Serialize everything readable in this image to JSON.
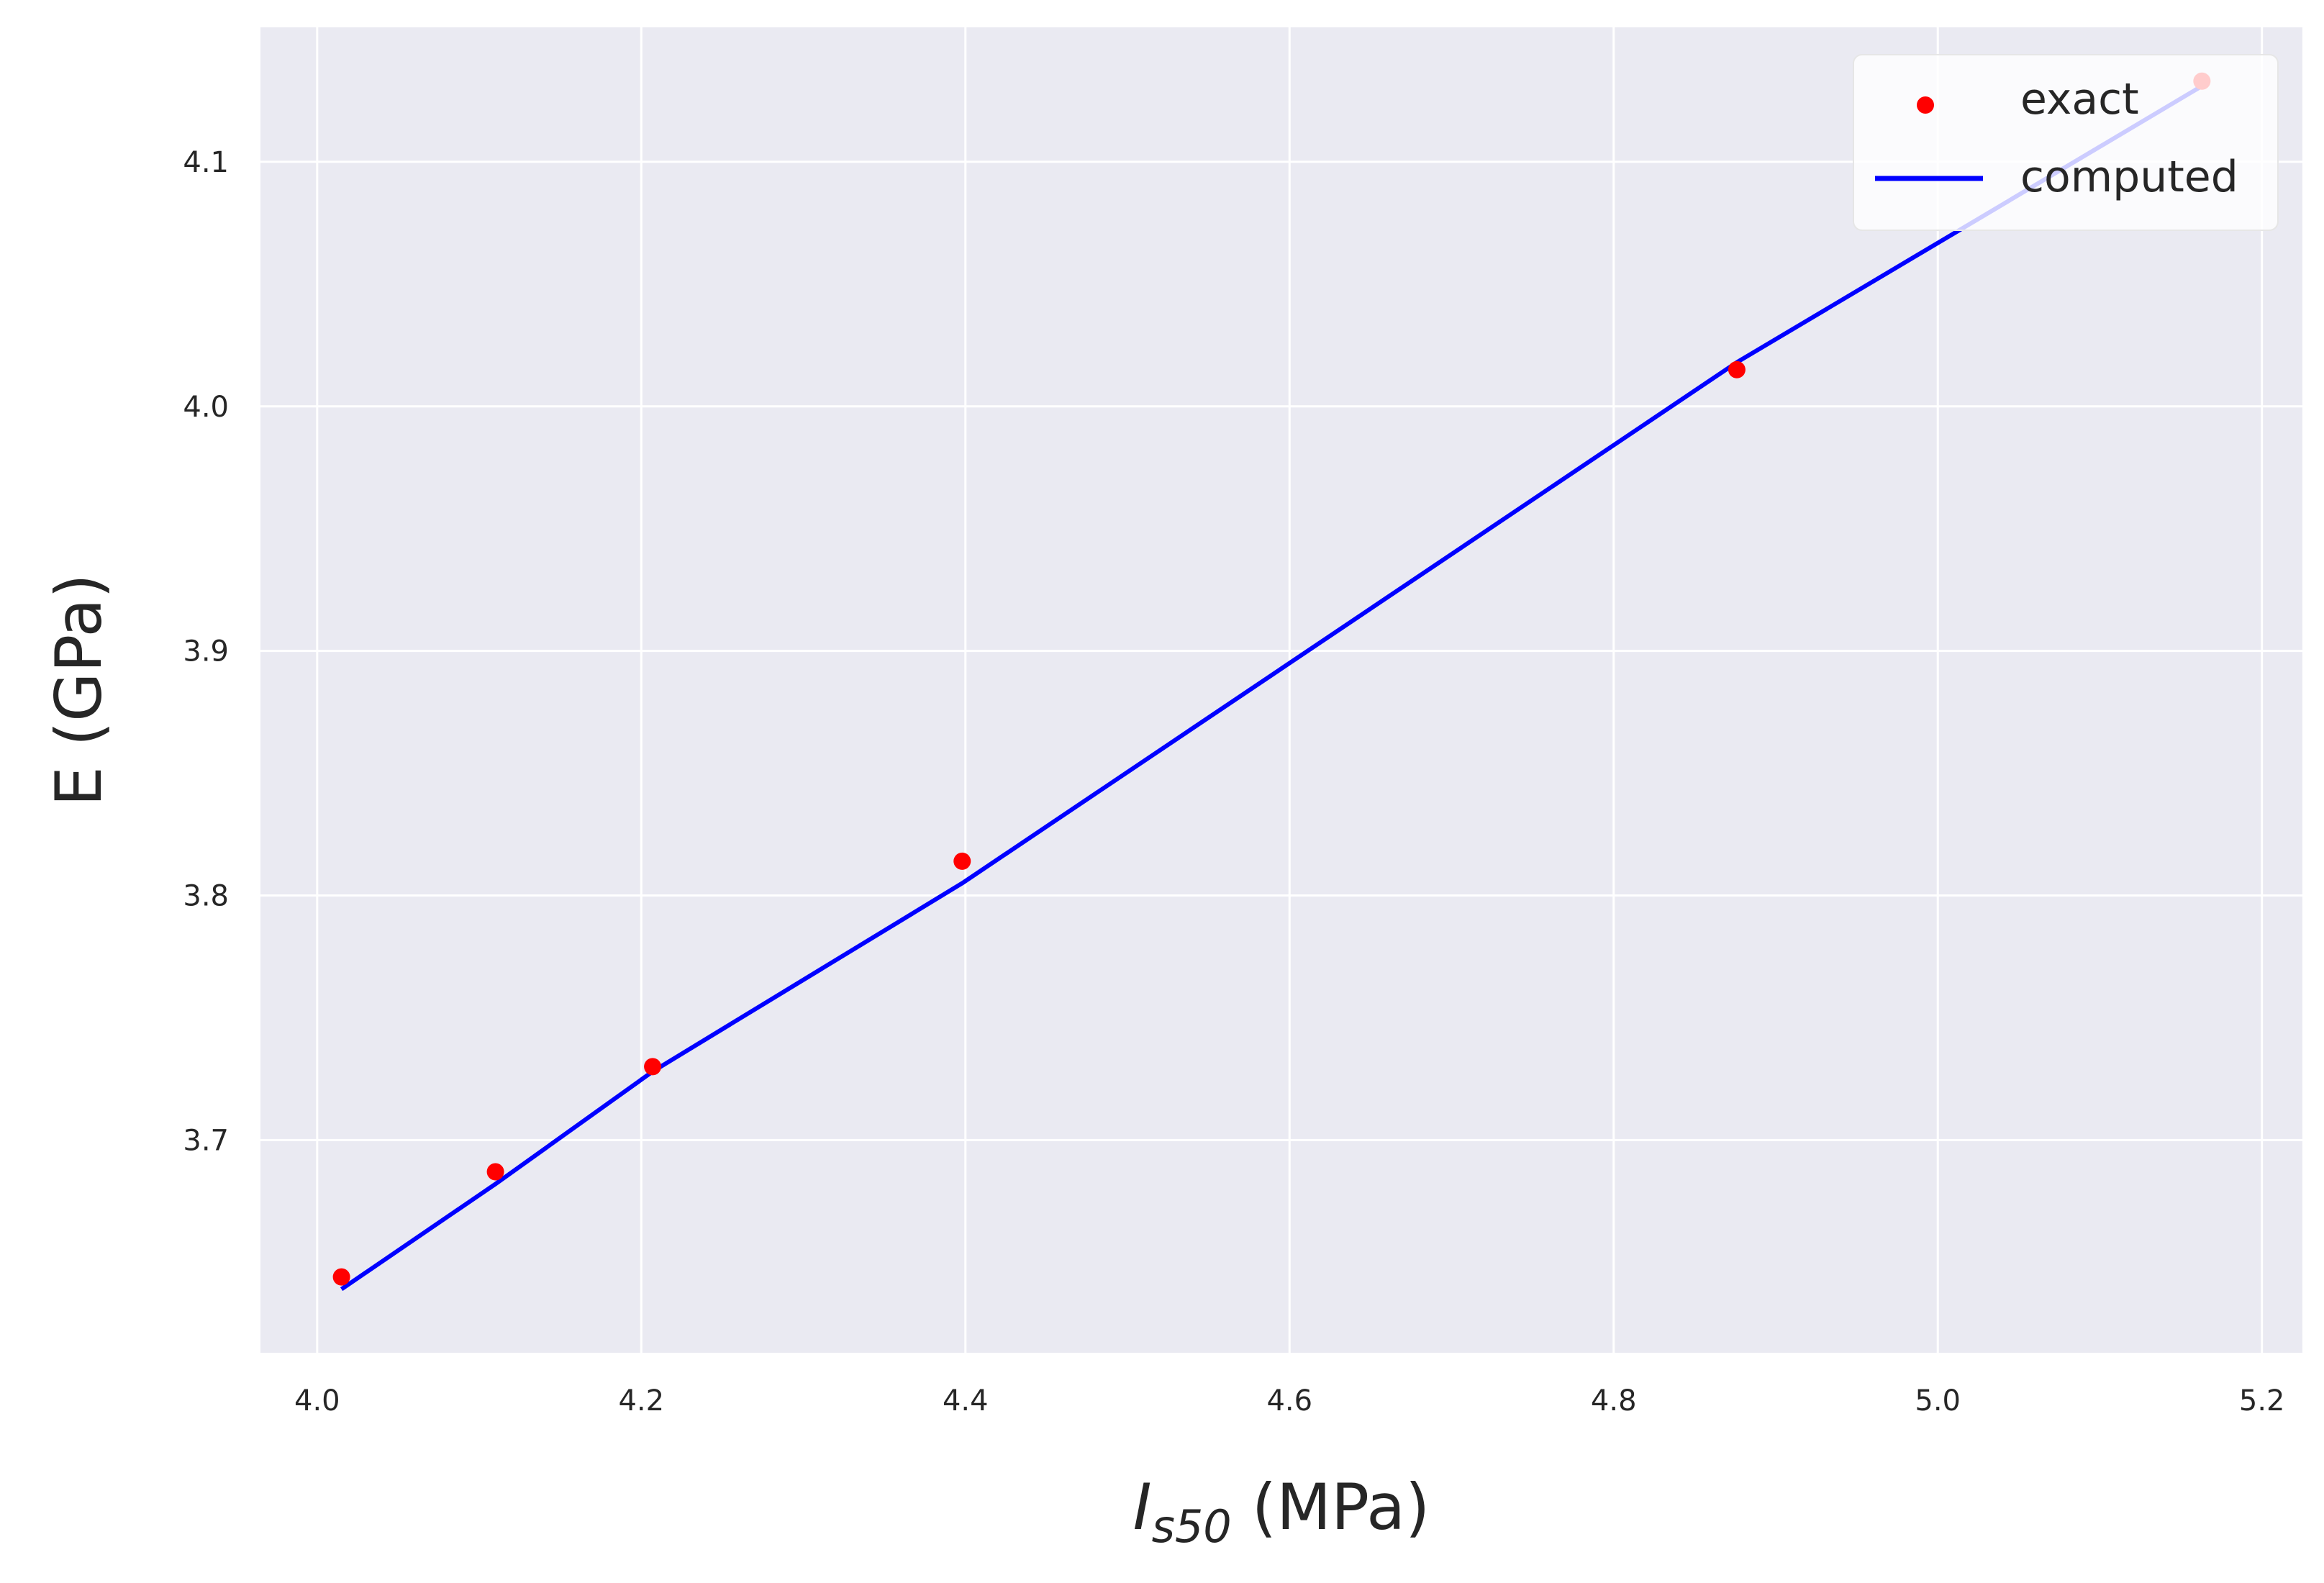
{
  "chart_data": {
    "type": "line",
    "xlabel": {
      "main": "I",
      "sub": "s50",
      "rest": " (MPa)"
    },
    "ylabel": "E (GPa)",
    "xlim": [
      3.965,
      5.225
    ],
    "ylim": [
      3.613,
      4.155
    ],
    "xticks": [
      4.0,
      4.2,
      4.4,
      4.6,
      4.8,
      5.0,
      5.2
    ],
    "xtick_labels": [
      "4.0",
      "4.2",
      "4.4",
      "4.6",
      "4.8",
      "5.0",
      "5.2"
    ],
    "yticks": [
      3.7,
      3.8,
      3.9,
      4.0,
      4.1
    ],
    "ytick_labels": [
      "3.7",
      "3.8",
      "3.9",
      "4.0",
      "4.1"
    ],
    "grid": true,
    "legend_position": "top-right",
    "series": [
      {
        "name": "exact",
        "kind": "scatter",
        "color": "#ff0000",
        "x": [
          4.015,
          4.11,
          4.207,
          4.398,
          4.876,
          5.163
        ],
        "y": [
          3.644,
          3.687,
          3.73,
          3.814,
          4.015,
          4.133
        ]
      },
      {
        "name": "computed",
        "kind": "line",
        "color": "#0000ff",
        "x": [
          4.015,
          4.11,
          4.207,
          4.398,
          4.876,
          5.163
        ],
        "y": [
          3.639,
          3.682,
          3.728,
          3.805,
          4.018,
          4.131
        ]
      }
    ],
    "background_color": "#eaeaf2",
    "grid_color": "#ffffff"
  }
}
